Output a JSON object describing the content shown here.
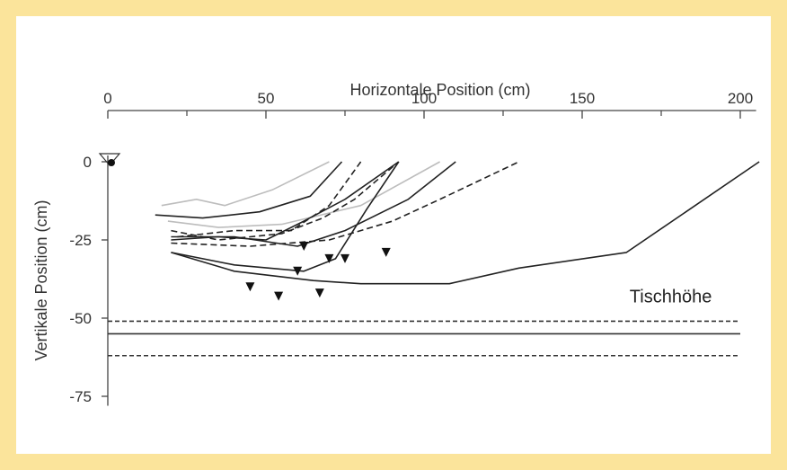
{
  "chart_data": {
    "type": "line",
    "title": "",
    "xlabel": "Horizontale Position (cm)",
    "ylabel": "Vertikale Position (cm)",
    "x_axis_position": "top",
    "xlim": [
      0,
      205
    ],
    "ylim": [
      -78,
      4
    ],
    "x_ticks": [
      0,
      50,
      100,
      150,
      200
    ],
    "x_minor_ticks": [
      25,
      75,
      125,
      175
    ],
    "y_ticks": [
      0,
      -25,
      -50,
      -75
    ],
    "grid": false,
    "legend": "none",
    "annotation": {
      "text": "Tischhöhe",
      "x": 165,
      "y": -45
    },
    "reference_lines": [
      {
        "name": "",
        "y": -51,
        "style": "dashed",
        "x": [
          0,
          200
        ]
      },
      {
        "name": "",
        "y": -55,
        "style": "solid",
        "x": [
          0,
          200
        ]
      },
      {
        "name": "",
        "y": -62,
        "style": "dashed",
        "x": [
          0,
          200
        ]
      }
    ],
    "series": [
      {
        "name": "",
        "color": "#bdbdbd",
        "style": "solid",
        "x": [
          17,
          28,
          37,
          52,
          70
        ],
        "y": [
          -14,
          -12,
          -14,
          -9,
          0
        ]
      },
      {
        "name": "",
        "color": "#bdbdbd",
        "style": "solid",
        "x": [
          19,
          35,
          55,
          80,
          105
        ],
        "y": [
          -19,
          -21,
          -20,
          -14,
          0
        ]
      },
      {
        "name": "",
        "color": "#222222",
        "style": "solid",
        "x": [
          15,
          30,
          48,
          64,
          74
        ],
        "y": [
          -17,
          -18,
          -16,
          -11,
          0
        ]
      },
      {
        "name": "",
        "color": "#222222",
        "style": "dashed",
        "x": [
          22,
          40,
          58,
          70,
          80
        ],
        "y": [
          -24,
          -22,
          -22,
          -14,
          0
        ]
      },
      {
        "name": "",
        "color": "#222222",
        "style": "dashed",
        "x": [
          20,
          35,
          55,
          68,
          78,
          92
        ],
        "y": [
          -22,
          -25,
          -23,
          -18,
          -12,
          0
        ]
      },
      {
        "name": "",
        "color": "#222222",
        "style": "solid",
        "x": [
          20,
          35,
          50,
          62,
          75,
          92
        ],
        "y": [
          -25,
          -24,
          -25,
          -19,
          -12,
          0
        ]
      },
      {
        "name": "",
        "color": "#222222",
        "style": "solid",
        "x": [
          20,
          40,
          60,
          75,
          95,
          110
        ],
        "y": [
          -24,
          -24,
          -27,
          -22,
          -12,
          0
        ]
      },
      {
        "name": "",
        "color": "#222222",
        "style": "dashed",
        "x": [
          20,
          45,
          70,
          90,
          105,
          130
        ],
        "y": [
          -26,
          -27,
          -25,
          -19,
          -12,
          0
        ]
      },
      {
        "name": "",
        "color": "#222222",
        "style": "solid",
        "x": [
          20,
          40,
          62,
          72,
          82,
          92
        ],
        "y": [
          -29,
          -33,
          -35,
          -31,
          -15,
          0
        ]
      },
      {
        "name": "",
        "color": "#222222",
        "style": "solid",
        "x": [
          20,
          40,
          65,
          80,
          108,
          130,
          164,
          206
        ],
        "y": [
          -29,
          -35,
          -38,
          -39,
          -39,
          -34,
          -29,
          0
        ]
      }
    ],
    "markers": {
      "shape": "triangle-down",
      "x": [
        45,
        54,
        67,
        60,
        62,
        70,
        75,
        88
      ],
      "y": [
        -40,
        -43,
        -42,
        -35,
        -27,
        -31,
        -31,
        -29
      ]
    }
  }
}
